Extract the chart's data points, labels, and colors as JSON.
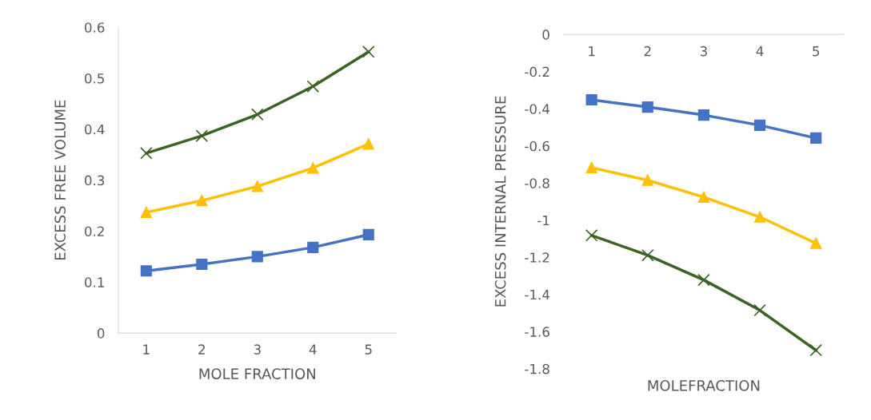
{
  "chart_data": [
    {
      "type": "line",
      "xlabel": "MOLE FRACTION",
      "ylabel": "EXCESS FREE VOLUME",
      "categories": [
        "1",
        "2",
        "3",
        "4",
        "5"
      ],
      "ylim": [
        0,
        0.6
      ],
      "yticks": [
        0,
        0.1,
        0.2,
        0.3,
        0.4,
        0.5,
        0.6
      ],
      "grid": false,
      "legend": false,
      "series": [
        {
          "color": "#4472c4",
          "marker": "square",
          "values": [
            0.122,
            0.135,
            0.15,
            0.168,
            0.193
          ]
        },
        {
          "color": "#ffc000",
          "marker": "triangle",
          "values": [
            0.237,
            0.26,
            0.288,
            0.324,
            0.371
          ]
        },
        {
          "color": "#3b6323",
          "marker": "cross",
          "values": [
            0.353,
            0.387,
            0.429,
            0.484,
            0.552
          ]
        }
      ]
    },
    {
      "type": "line",
      "xlabel": "MOLEFRACTION",
      "ylabel": "EXCESS INTERNAL PRESSURE",
      "categories": [
        "1",
        "2",
        "3",
        "4",
        "5"
      ],
      "ylim": [
        -1.8,
        0
      ],
      "yticks": [
        0,
        -0.2,
        -0.4,
        -0.6,
        -0.8,
        -1,
        -1.2,
        -1.4,
        -1.6,
        -1.8
      ],
      "grid": false,
      "legend": false,
      "series": [
        {
          "color": "#4472c4",
          "marker": "square",
          "values": [
            -0.352,
            -0.391,
            -0.434,
            -0.489,
            -0.558
          ]
        },
        {
          "color": "#ffc000",
          "marker": "triangle",
          "values": [
            -0.717,
            -0.785,
            -0.876,
            -0.983,
            -1.124
          ]
        },
        {
          "color": "#3b6323",
          "marker": "cross",
          "values": [
            -1.082,
            -1.189,
            -1.322,
            -1.485,
            -1.7
          ]
        }
      ]
    }
  ]
}
